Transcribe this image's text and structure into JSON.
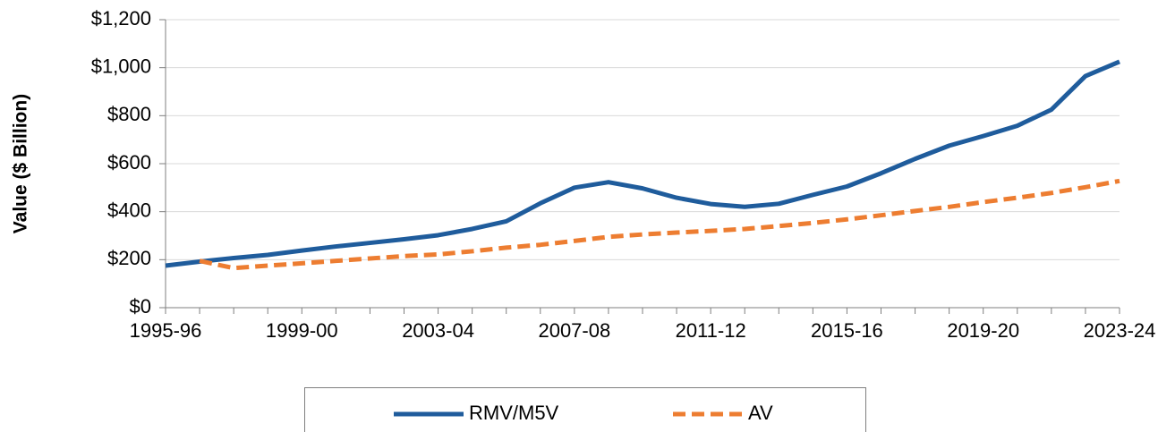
{
  "chart_data": {
    "type": "line",
    "y_label": "Value ($ Billion)",
    "categories": [
      "1995-96",
      null,
      null,
      null,
      "1999-00",
      null,
      null,
      null,
      "2003-04",
      null,
      null,
      null,
      "2007-08",
      null,
      null,
      null,
      "2011-12",
      null,
      null,
      null,
      "2015-16",
      null,
      null,
      null,
      "2019-20",
      null,
      null,
      null,
      "2023-24"
    ],
    "series": [
      {
        "name": "RMV/M5V",
        "color": "#1f5c9c",
        "dash": false,
        "values": [
          175,
          192,
          207,
          220,
          238,
          255,
          270,
          285,
          302,
          328,
          360,
          435,
          500,
          523,
          497,
          458,
          432,
          420,
          433,
          470,
          505,
          560,
          620,
          675,
          715,
          758,
          825,
          965,
          1025
        ]
      },
      {
        "name": "AV",
        "color": "#ed7d31",
        "dash": true,
        "values": [
          null,
          195,
          165,
          175,
          185,
          195,
          205,
          215,
          222,
          235,
          250,
          262,
          278,
          295,
          305,
          313,
          320,
          328,
          340,
          353,
          368,
          385,
          403,
          420,
          440,
          458,
          478,
          502,
          528
        ]
      }
    ],
    "ylim": [
      0,
      1200
    ],
    "yticks": [
      {
        "value": 0,
        "label": "$0"
      },
      {
        "value": 200,
        "label": "$200"
      },
      {
        "value": 400,
        "label": "$400"
      },
      {
        "value": 600,
        "label": "$600"
      },
      {
        "value": 800,
        "label": "$800"
      },
      {
        "value": 1000,
        "label": "$1,000"
      },
      {
        "value": 1200,
        "label": "$1,200"
      }
    ],
    "grid": true,
    "legend": "bottom"
  }
}
